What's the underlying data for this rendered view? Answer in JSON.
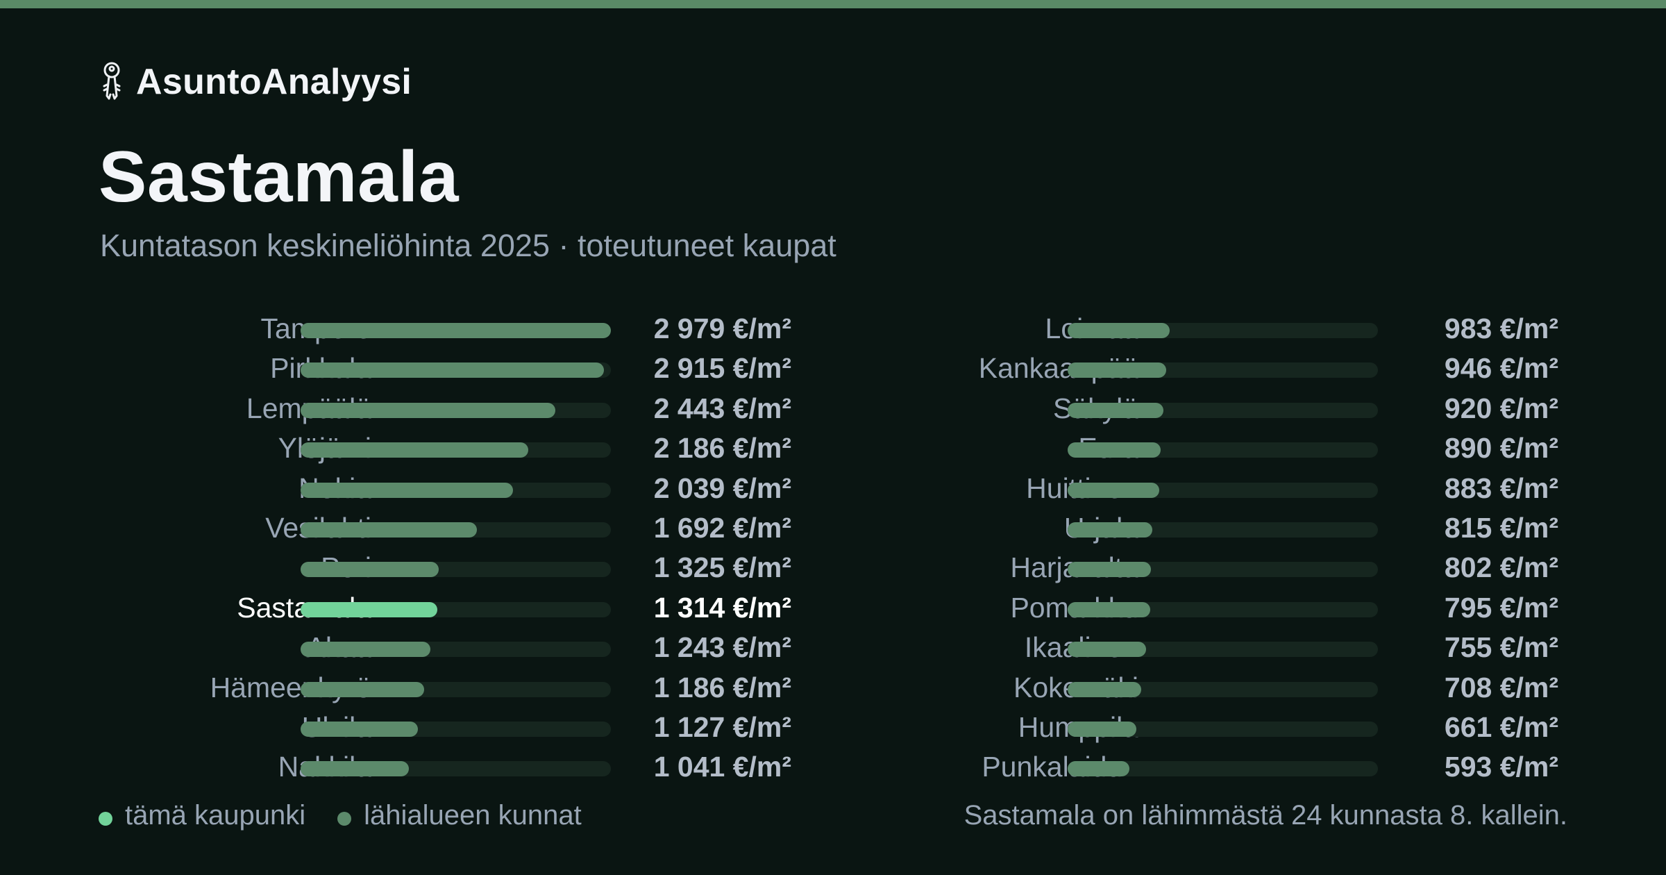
{
  "brand": {
    "name": "AsuntoAnalyysi",
    "icon": "keys-icon"
  },
  "colors": {
    "accent_stripe": "#5a8a66",
    "highlight_bar": "#72d39a",
    "bar": "#5c8a6b",
    "track": "#16261f",
    "background": "#0a1512"
  },
  "chart_data": {
    "type": "bar",
    "orientation": "horizontal",
    "title": "Sastamala",
    "subtitle": "Kuntatason keskineliöhinta 2025 · toteutuneet kaupat",
    "unit": "€/m²",
    "xlim": [
      0,
      2979
    ],
    "highlight": "Sastamala",
    "columns": [
      [
        {
          "name": "Tampere",
          "value": 2979,
          "label": "2 979 €/m²"
        },
        {
          "name": "Pirkkala",
          "value": 2915,
          "label": "2 915 €/m²"
        },
        {
          "name": "Lempäälä",
          "value": 2443,
          "label": "2 443 €/m²"
        },
        {
          "name": "Ylöjärvi",
          "value": 2186,
          "label": "2 186 €/m²"
        },
        {
          "name": "Nokia",
          "value": 2039,
          "label": "2 039 €/m²"
        },
        {
          "name": "Vesilahti",
          "value": 1692,
          "label": "1 692 €/m²"
        },
        {
          "name": "Pori",
          "value": 1325,
          "label": "1 325 €/m²"
        },
        {
          "name": "Sastamala",
          "value": 1314,
          "label": "1 314 €/m²"
        },
        {
          "name": "Akaa",
          "value": 1243,
          "label": "1 243 €/m²"
        },
        {
          "name": "Hämeenkyrö",
          "value": 1186,
          "label": "1 186 €/m²"
        },
        {
          "name": "Ulvila",
          "value": 1127,
          "label": "1 127 €/m²"
        },
        {
          "name": "Nakkila",
          "value": 1041,
          "label": "1 041 €/m²"
        }
      ],
      [
        {
          "name": "Loimaa",
          "value": 983,
          "label": "983 €/m²"
        },
        {
          "name": "Kankaanpää",
          "value": 946,
          "label": "946 €/m²"
        },
        {
          "name": "Säkylä",
          "value": 920,
          "label": "920 €/m²"
        },
        {
          "name": "Eura",
          "value": 890,
          "label": "890 €/m²"
        },
        {
          "name": "Huittinen",
          "value": 883,
          "label": "883 €/m²"
        },
        {
          "name": "Urjala",
          "value": 815,
          "label": "815 €/m²"
        },
        {
          "name": "Harjavalta",
          "value": 802,
          "label": "802 €/m²"
        },
        {
          "name": "Pomarkku",
          "value": 795,
          "label": "795 €/m²"
        },
        {
          "name": "Ikaalinen",
          "value": 755,
          "label": "755 €/m²"
        },
        {
          "name": "Kokemäki",
          "value": 708,
          "label": "708 €/m²"
        },
        {
          "name": "Humppila",
          "value": 661,
          "label": "661 €/m²"
        },
        {
          "name": "Punkalaidun",
          "value": 593,
          "label": "593 €/m²"
        }
      ]
    ],
    "legend": [
      {
        "label": "tämä kaupunki",
        "color": "#72d39a"
      },
      {
        "label": "lähialueen kunnat",
        "color": "#5c8a6b"
      }
    ]
  },
  "footnote": "Sastamala on lähimmästä 24 kunnasta 8. kallein."
}
